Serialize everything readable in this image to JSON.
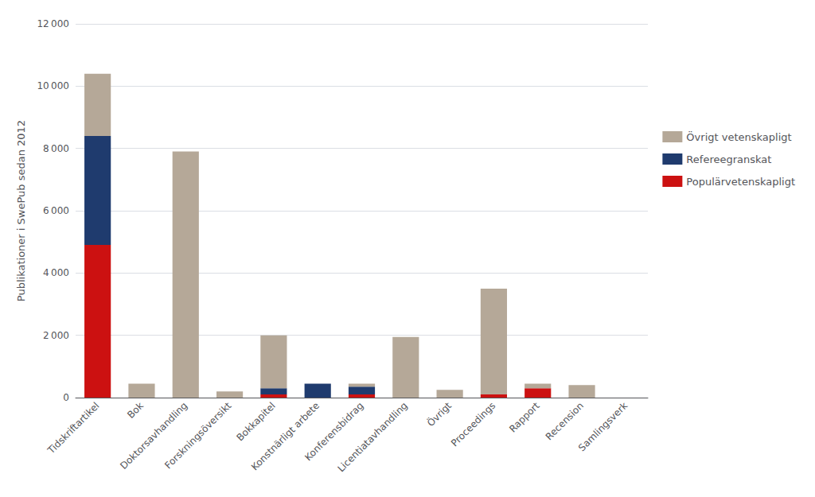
{
  "chart_data": {
    "type": "bar",
    "stacked": true,
    "ylabel": "Publikationer i SwePub sedan 2012",
    "categories": [
      "Tidskriftartikel",
      "Bok",
      "Doktorsavhandling",
      "Forskningsöversikt",
      "Bokkapitel",
      "Konstnärligt arbete",
      "Konferensbidrag",
      "Licentiatavhandling",
      "Övrigt",
      "Proceedings",
      "Rapport",
      "Recension",
      "Samlingsverk"
    ],
    "series": [
      {
        "name": "Populärvetenskapligt",
        "color": "#cc1111",
        "values": [
          4900,
          0,
          0,
          0,
          100,
          0,
          100,
          0,
          0,
          100,
          300,
          0,
          0
        ]
      },
      {
        "name": "Refereegranskat",
        "color": "#1f3b6e",
        "values": [
          3500,
          0,
          0,
          0,
          200,
          450,
          250,
          0,
          0,
          0,
          0,
          0,
          0
        ]
      },
      {
        "name": "Övrigt vetenskapligt",
        "color": "#b5a898",
        "values": [
          2000,
          450,
          7900,
          200,
          1700,
          0,
          100,
          1950,
          250,
          3400,
          150,
          400,
          0
        ]
      }
    ],
    "ylim": [
      0,
      12000
    ],
    "yticks": [
      0,
      {
        "value": 2000,
        "label": "2 000"
      },
      {
        "value": 4000,
        "label": "4 000"
      },
      {
        "value": 6000,
        "label": "6 000"
      },
      {
        "value": 8000,
        "label": "8 000"
      },
      {
        "value": 10000,
        "label": "10 000"
      },
      {
        "value": 12000,
        "label": "12 000"
      }
    ],
    "grid": true,
    "legend": "right"
  }
}
